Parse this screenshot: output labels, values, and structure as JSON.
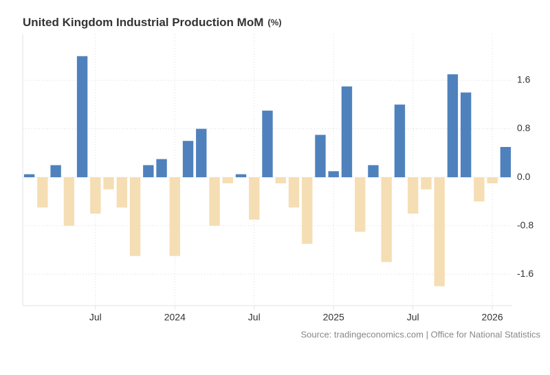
{
  "chart_data": {
    "type": "bar",
    "title": "United Kingdom Industrial Production MoM",
    "unit": "(%)",
    "source": "Source: tradingeconomics.com | Office for National Statistics",
    "categories": [
      null,
      null,
      null,
      null,
      null,
      "Jul",
      null,
      null,
      null,
      null,
      null,
      "2024",
      null,
      null,
      null,
      null,
      null,
      "Jul",
      null,
      null,
      null,
      null,
      null,
      "2025",
      null,
      null,
      null,
      null,
      null,
      "Jul",
      null,
      null,
      null,
      null,
      null,
      "2026",
      null
    ],
    "values": [
      0.05,
      -0.5,
      0.2,
      -0.8,
      2.0,
      -0.6,
      -0.2,
      -0.5,
      -1.3,
      0.2,
      0.3,
      -1.3,
      0.6,
      0.8,
      -0.8,
      -0.1,
      0.05,
      -0.7,
      1.1,
      -0.1,
      -0.5,
      -1.1,
      0.7,
      0.1,
      1.5,
      -0.9,
      0.2,
      -1.4,
      1.2,
      -0.6,
      -0.2,
      -1.8,
      1.7,
      1.4,
      -0.4,
      -0.1,
      0.5
    ],
    "positive_color": "#4f81bd",
    "negative_color": "#f5deb3",
    "ylim": [
      -2.12,
      2.36
    ],
    "yticks": [
      -1.6,
      -0.8,
      {
        "value": 0,
        "label": "0.0"
      },
      0.8,
      1.6
    ],
    "grid": true
  }
}
